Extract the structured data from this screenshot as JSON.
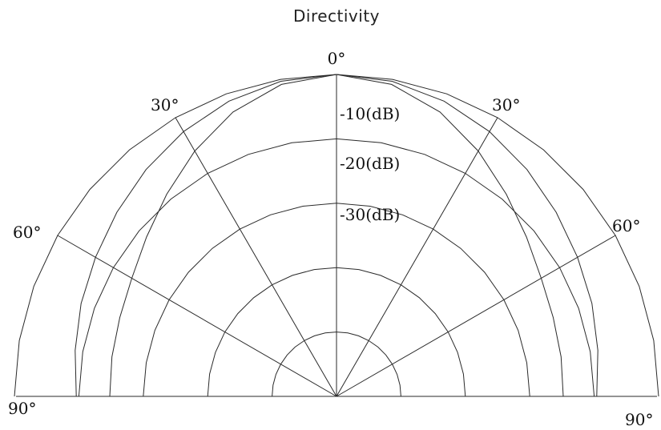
{
  "title": "Directivity",
  "chart_data": {
    "type": "polar",
    "title": "Directivity",
    "angle_range_deg": [
      -90,
      90
    ],
    "angle_tick_labels": {
      "top": "0°",
      "left_30": "30°",
      "right_30": "30°",
      "left_60": "60°",
      "right_60": "60°",
      "left_90": "90°",
      "right_90": "90°"
    },
    "radial_labels": [
      "-10(dB)",
      "-20(dB)",
      "-30(dB)"
    ],
    "radial_levels_db": [
      0,
      -10,
      -20,
      -30,
      -40
    ],
    "spoke_angles_deg": [
      -60,
      -30,
      0,
      30,
      60
    ],
    "grid": true,
    "series": [
      {
        "angles_deg": [
          0,
          10,
          20,
          30,
          40,
          50,
          60,
          70,
          80,
          90
        ],
        "values": [
          0,
          -0.3,
          -1.2,
          -2.5,
          -4.0,
          -5.5,
          -6.8,
          -7.8,
          -8.8,
          -9.6
        ]
      },
      {
        "angles_deg": [
          0,
          10,
          20,
          30,
          40,
          50,
          60,
          70,
          80,
          90
        ],
        "values": [
          0,
          -0.8,
          -3.0,
          -6.0,
          -9.0,
          -11.5,
          -13.3,
          -14.2,
          -14.6,
          -14.8
        ]
      }
    ]
  }
}
